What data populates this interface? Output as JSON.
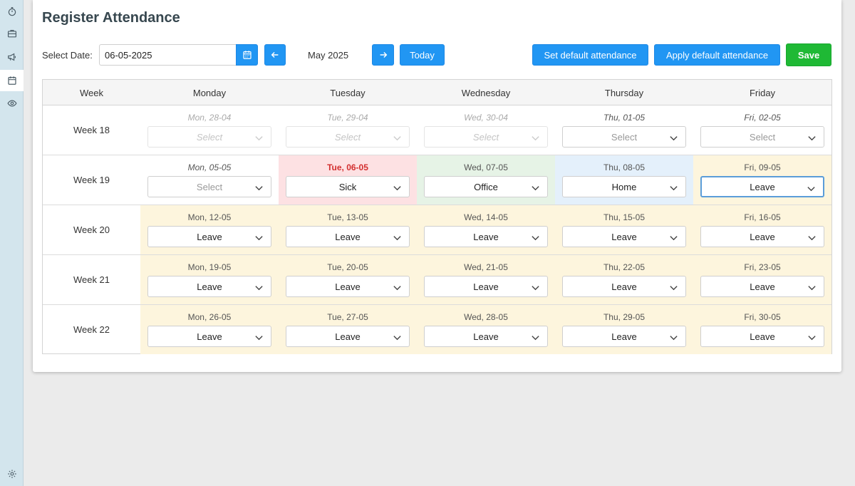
{
  "sidebar": {
    "items": [
      {
        "name": "stopwatch-icon",
        "active": false
      },
      {
        "name": "briefcase-icon",
        "active": false
      },
      {
        "name": "megaphone-icon",
        "active": false
      },
      {
        "name": "calendar-icon",
        "active": true
      },
      {
        "name": "eye-icon",
        "active": false
      }
    ],
    "footer_icon": "gear-icon"
  },
  "page": {
    "title": "Register Attendance"
  },
  "toolbar": {
    "select_date_label": "Select Date:",
    "date_value": "06-05-2025",
    "month_label": "May 2025",
    "today_label": "Today",
    "set_default_label": "Set default attendance",
    "apply_default_label": "Apply default attendance",
    "save_label": "Save"
  },
  "grid": {
    "headers": [
      "Week",
      "Monday",
      "Tuesday",
      "Wednesday",
      "Thursday",
      "Friday"
    ],
    "weeks": [
      {
        "label": "Week 18",
        "days": [
          {
            "date": "Mon, 28-04",
            "value": "Select"
          },
          {
            "date": "Tue, 29-04",
            "value": "Select"
          },
          {
            "date": "Wed, 30-04",
            "value": "Select"
          },
          {
            "date": "Thu, 01-05",
            "value": "Select"
          },
          {
            "date": "Fri, 02-05",
            "value": "Select"
          }
        ]
      },
      {
        "label": "Week 19",
        "days": [
          {
            "date": "Mon, 05-05",
            "value": "Select"
          },
          {
            "date": "Tue, 06-05",
            "value": "Sick"
          },
          {
            "date": "Wed, 07-05",
            "value": "Office"
          },
          {
            "date": "Thu, 08-05",
            "value": "Home"
          },
          {
            "date": "Fri, 09-05",
            "value": "Leave"
          }
        ]
      },
      {
        "label": "Week 20",
        "days": [
          {
            "date": "Mon, 12-05",
            "value": "Leave"
          },
          {
            "date": "Tue, 13-05",
            "value": "Leave"
          },
          {
            "date": "Wed, 14-05",
            "value": "Leave"
          },
          {
            "date": "Thu, 15-05",
            "value": "Leave"
          },
          {
            "date": "Fri, 16-05",
            "value": "Leave"
          }
        ]
      },
      {
        "label": "Week 21",
        "days": [
          {
            "date": "Mon, 19-05",
            "value": "Leave"
          },
          {
            "date": "Tue, 20-05",
            "value": "Leave"
          },
          {
            "date": "Wed, 21-05",
            "value": "Leave"
          },
          {
            "date": "Thu, 22-05",
            "value": "Leave"
          },
          {
            "date": "Fri, 23-05",
            "value": "Leave"
          }
        ]
      },
      {
        "label": "Week 22",
        "days": [
          {
            "date": "Mon, 26-05",
            "value": "Leave"
          },
          {
            "date": "Tue, 27-05",
            "value": "Leave"
          },
          {
            "date": "Wed, 28-05",
            "value": "Leave"
          },
          {
            "date": "Thu, 29-05",
            "value": "Leave"
          },
          {
            "date": "Fri, 30-05",
            "value": "Leave"
          }
        ]
      }
    ]
  },
  "colors": {
    "primary": "#2196f3",
    "save": "#1fb935",
    "leave": "#fdf5dd",
    "sick": "#fde1e3",
    "office": "#e6f3e6",
    "home": "#e4f0fb",
    "today_text": "#d32f2f"
  }
}
